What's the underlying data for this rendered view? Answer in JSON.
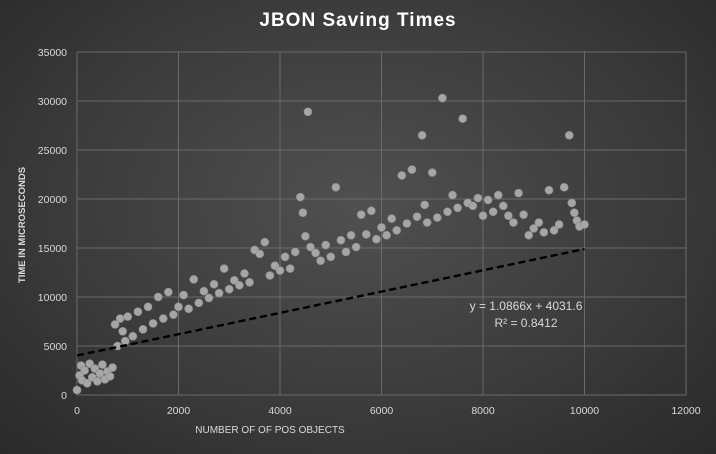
{
  "chart_data": {
    "type": "scatter",
    "title": "JBON Saving Times",
    "xlabel": "NUMBER OF OF POS OBJECTS",
    "ylabel": "TIME IN MICROSECONDS",
    "xlim": [
      0,
      12000
    ],
    "ylim": [
      0,
      35000
    ],
    "x_ticks": [
      0,
      2000,
      4000,
      6000,
      8000,
      10000,
      12000
    ],
    "y_ticks": [
      0,
      5000,
      10000,
      15000,
      20000,
      25000,
      30000,
      35000
    ],
    "x_tick_labels": [
      "0",
      "2000",
      "4000",
      "6000",
      "8000",
      "10000",
      "12000"
    ],
    "y_tick_labels": [
      "0",
      "5000",
      "10000",
      "15000",
      "20000",
      "25000",
      "30000",
      "35000"
    ],
    "grid": true,
    "legend": "none",
    "series": [
      {
        "marker_color": "#a6a6a6",
        "points": [
          [
            0,
            500
          ],
          [
            50,
            2000
          ],
          [
            80,
            3000
          ],
          [
            100,
            1500
          ],
          [
            150,
            2500
          ],
          [
            200,
            1200
          ],
          [
            250,
            3200
          ],
          [
            300,
            1800
          ],
          [
            350,
            2700
          ],
          [
            400,
            1400
          ],
          [
            450,
            2200
          ],
          [
            500,
            3100
          ],
          [
            550,
            1600
          ],
          [
            600,
            2400
          ],
          [
            650,
            1900
          ],
          [
            700,
            2800
          ],
          [
            750,
            7200
          ],
          [
            800,
            5000
          ],
          [
            850,
            7800
          ],
          [
            900,
            6500
          ],
          [
            950,
            5500
          ],
          [
            1000,
            8000
          ],
          [
            1100,
            6000
          ],
          [
            1200,
            8500
          ],
          [
            1300,
            6700
          ],
          [
            1400,
            9000
          ],
          [
            1500,
            7300
          ],
          [
            1600,
            10000
          ],
          [
            1700,
            7800
          ],
          [
            1800,
            10500
          ],
          [
            1900,
            8200
          ],
          [
            2000,
            9000
          ],
          [
            2100,
            10200
          ],
          [
            2200,
            8800
          ],
          [
            2300,
            11800
          ],
          [
            2400,
            9400
          ],
          [
            2500,
            10600
          ],
          [
            2600,
            9900
          ],
          [
            2700,
            11300
          ],
          [
            2800,
            10400
          ],
          [
            2900,
            12900
          ],
          [
            3000,
            10800
          ],
          [
            3100,
            11700
          ],
          [
            3200,
            11200
          ],
          [
            3300,
            12400
          ],
          [
            3400,
            11500
          ],
          [
            3500,
            14800
          ],
          [
            3600,
            14400
          ],
          [
            3700,
            15600
          ],
          [
            3800,
            12200
          ],
          [
            3900,
            13200
          ],
          [
            4000,
            12700
          ],
          [
            4100,
            14100
          ],
          [
            4200,
            12900
          ],
          [
            4300,
            14600
          ],
          [
            4400,
            20200
          ],
          [
            4450,
            18600
          ],
          [
            4500,
            16200
          ],
          [
            4550,
            28900
          ],
          [
            4600,
            15100
          ],
          [
            4700,
            14500
          ],
          [
            4800,
            13700
          ],
          [
            4900,
            15300
          ],
          [
            5000,
            14100
          ],
          [
            5100,
            21200
          ],
          [
            5200,
            15800
          ],
          [
            5300,
            14600
          ],
          [
            5400,
            16300
          ],
          [
            5500,
            15100
          ],
          [
            5600,
            18400
          ],
          [
            5700,
            16400
          ],
          [
            5800,
            18800
          ],
          [
            5900,
            15900
          ],
          [
            6000,
            17100
          ],
          [
            6100,
            16300
          ],
          [
            6200,
            18000
          ],
          [
            6300,
            16800
          ],
          [
            6400,
            22400
          ],
          [
            6500,
            17500
          ],
          [
            6600,
            23000
          ],
          [
            6700,
            18200
          ],
          [
            6800,
            26500
          ],
          [
            6850,
            19400
          ],
          [
            6900,
            17600
          ],
          [
            7000,
            22700
          ],
          [
            7100,
            18100
          ],
          [
            7200,
            30300
          ],
          [
            7300,
            18700
          ],
          [
            7400,
            20400
          ],
          [
            7500,
            19100
          ],
          [
            7600,
            28200
          ],
          [
            7700,
            19600
          ],
          [
            7800,
            19300
          ],
          [
            7900,
            20100
          ],
          [
            8000,
            18300
          ],
          [
            8100,
            19900
          ],
          [
            8200,
            18700
          ],
          [
            8300,
            20400
          ],
          [
            8400,
            19300
          ],
          [
            8500,
            18300
          ],
          [
            8600,
            17600
          ],
          [
            8700,
            20600
          ],
          [
            8800,
            18400
          ],
          [
            8900,
            16300
          ],
          [
            9000,
            17000
          ],
          [
            9100,
            17600
          ],
          [
            9200,
            16600
          ],
          [
            9300,
            20900
          ],
          [
            9400,
            16800
          ],
          [
            9500,
            17400
          ],
          [
            9600,
            21200
          ],
          [
            9700,
            26500
          ],
          [
            9750,
            19600
          ],
          [
            9800,
            18600
          ],
          [
            9850,
            17800
          ],
          [
            9900,
            17200
          ],
          [
            10000,
            17400
          ]
        ]
      }
    ],
    "trendline": {
      "type": "linear",
      "slope": 1.0866,
      "intercept": 4031.6,
      "equation_label": "y = 1.0866x + 4031.6",
      "r2_label": "R² = 0.8412"
    }
  }
}
